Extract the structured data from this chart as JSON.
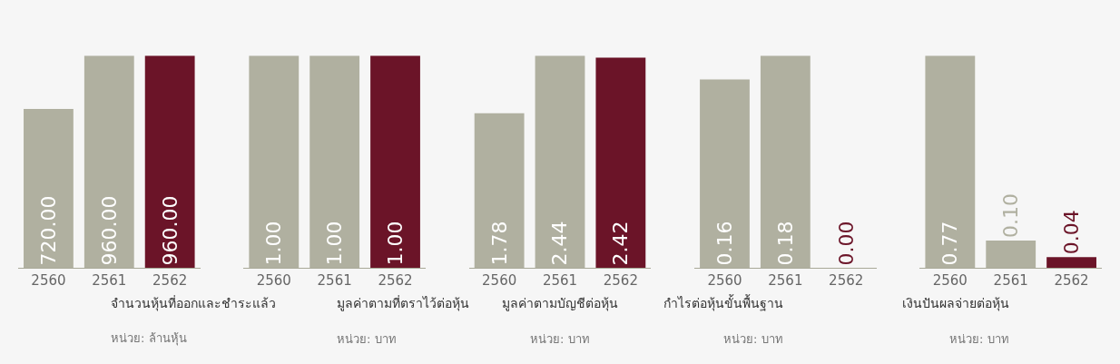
{
  "chart_data": [
    {
      "type": "bar",
      "title": "จำนวนหุ้นที่ออกและชำระแล้ว",
      "subtitle": "หน่วย: ล้านหุ้น",
      "categories": [
        "2560",
        "2561",
        "2562"
      ],
      "values": [
        720,
        960,
        960
      ],
      "value_labels": [
        "720.00",
        "960.00",
        "960.00"
      ],
      "colors": [
        "#b0b0a0",
        "#b0b0a0",
        "#6b1428"
      ]
    },
    {
      "type": "bar",
      "title": "มูลค่าตามที่ตราไว้ต่อหุ้น",
      "subtitle": "หน่วย: บาท",
      "categories": [
        "2560",
        "2561",
        "2562"
      ],
      "values": [
        1,
        1,
        1
      ],
      "value_labels": [
        "1.00",
        "1.00",
        "1.00"
      ],
      "colors": [
        "#b0b0a0",
        "#b0b0a0",
        "#6b1428"
      ]
    },
    {
      "type": "bar",
      "title": "มูลค่าตามบัญชีต่อหุ้น",
      "subtitle": "หน่วย: บาท",
      "categories": [
        "2560",
        "2561",
        "2562"
      ],
      "values": [
        1.78,
        2.44,
        2.42
      ],
      "value_labels": [
        "1.78",
        "2.44",
        "2.42"
      ],
      "colors": [
        "#b0b0a0",
        "#b0b0a0",
        "#6b1428"
      ]
    },
    {
      "type": "bar",
      "title": "กำไรต่อหุ้นขั้นพื้นฐาน",
      "subtitle": "หน่วย: บาท",
      "categories": [
        "2560",
        "2561",
        "2562"
      ],
      "values": [
        0.16,
        0.18,
        0.0
      ],
      "value_labels": [
        "0.16",
        "0.18",
        "0.00"
      ],
      "colors": [
        "#b0b0a0",
        "#b0b0a0",
        "#6b1428"
      ]
    },
    {
      "type": "bar",
      "title": "เงินปันผลจ่ายต่อหุ้น",
      "subtitle": "หน่วย: บาท",
      "categories": [
        "2560",
        "2561",
        "2562"
      ],
      "values": [
        0.77,
        0.1,
        0.04
      ],
      "value_labels": [
        "0.77",
        "0.10",
        "0.04"
      ],
      "colors": [
        "#b0b0a0",
        "#b0b0a0",
        "#6b1428"
      ]
    }
  ]
}
